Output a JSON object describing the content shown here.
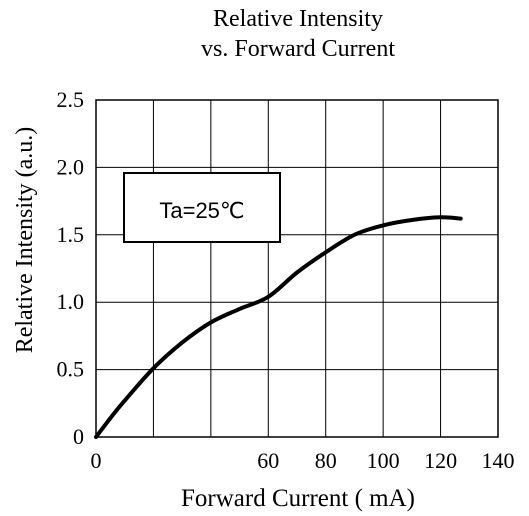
{
  "chart_data": {
    "type": "line",
    "title_line1": "Relative Intensity",
    "title_line2": "vs. Forward Current",
    "xlabel": "Forward Current ( mA)",
    "ylabel": "Relative Intensity  (a.u.)",
    "xlim": [
      0,
      140
    ],
    "ylim": [
      0,
      2.5
    ],
    "grid": true,
    "x_ticks": [
      {
        "value": 0,
        "label": "0"
      },
      {
        "value": 60,
        "label": "60"
      },
      {
        "value": 80,
        "label": "80"
      },
      {
        "value": 100,
        "label": "100"
      },
      {
        "value": 120,
        "label": "120"
      },
      {
        "value": 140,
        "label": "140"
      }
    ],
    "x_gridlines": [
      0,
      20,
      40,
      60,
      80,
      100,
      120,
      140
    ],
    "y_ticks": [
      {
        "value": 0,
        "label": "0"
      },
      {
        "value": 0.5,
        "label": "0.5"
      },
      {
        "value": 1.0,
        "label": "1.0"
      },
      {
        "value": 1.5,
        "label": "1.5"
      },
      {
        "value": 2.0,
        "label": "2.0"
      },
      {
        "value": 2.5,
        "label": "2.5"
      }
    ],
    "annotation": "Ta=25℃",
    "series": [
      {
        "x": [
          0,
          5,
          10,
          20,
          30,
          40,
          50,
          60,
          70,
          80,
          90,
          100,
          110,
          120,
          127
        ],
        "y": [
          0,
          0.14,
          0.27,
          0.51,
          0.7,
          0.85,
          0.95,
          1.04,
          1.22,
          1.37,
          1.5,
          1.57,
          1.61,
          1.63,
          1.62
        ]
      }
    ],
    "line_color": "#000000"
  }
}
